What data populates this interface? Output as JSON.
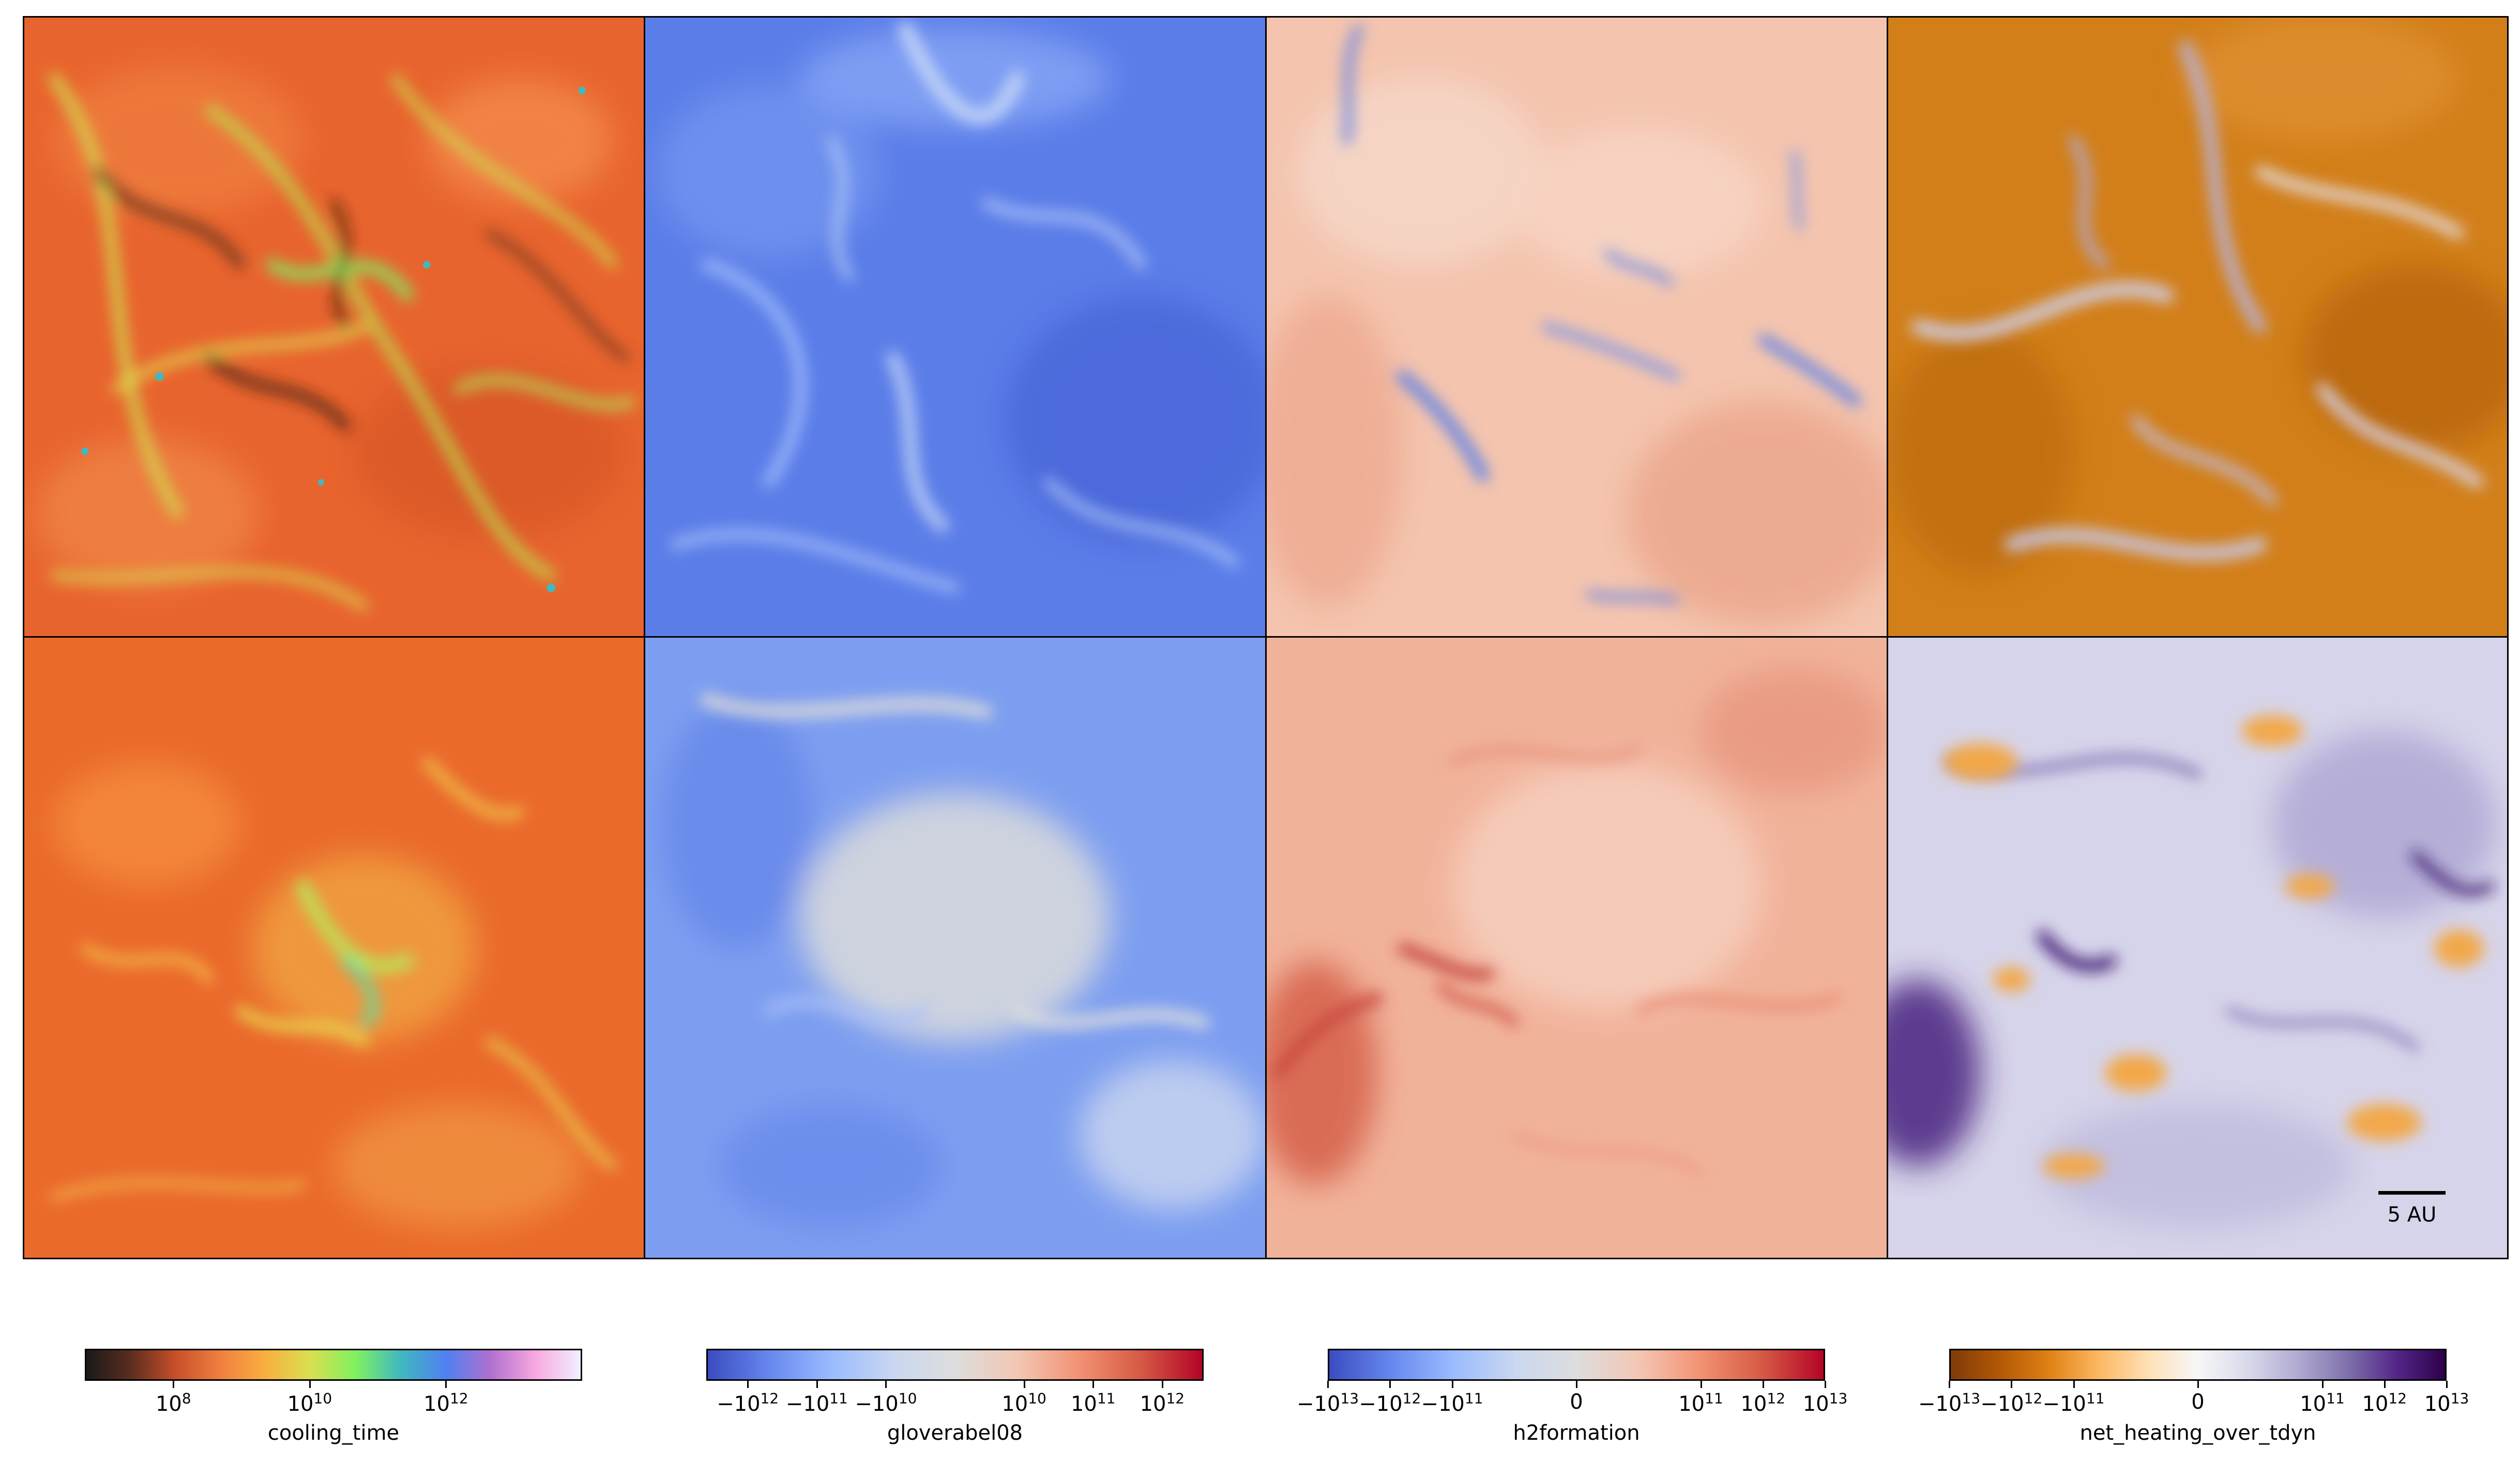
{
  "chart_data": {
    "type": "heatmap",
    "layout": "2 rows x 4 columns of field slices",
    "panels": [
      {
        "field": "cooling_time",
        "row": 1,
        "col": 1,
        "colormap": "orange field with green/yellow filaments, dark brown streaks"
      },
      {
        "field": "gloverabel08",
        "row": 1,
        "col": 2,
        "colormap": "mostly blue (negative) with light blue filaments"
      },
      {
        "field": "h2formation",
        "row": 1,
        "col": 3,
        "colormap": "light salmon (positive) with blue negative patches"
      },
      {
        "field": "net_heating_over_tdyn",
        "row": 1,
        "col": 4,
        "colormap": "orange (negative) with purple/lavender filaments"
      },
      {
        "field": "cooling_time",
        "row": 2,
        "col": 1,
        "colormap": "orange field with yellow/green center"
      },
      {
        "field": "gloverabel08",
        "row": 2,
        "col": 2,
        "colormap": "blue to grey-white"
      },
      {
        "field": "h2formation",
        "row": 2,
        "col": 3,
        "colormap": "salmon with dark red streaks"
      },
      {
        "field": "net_heating_over_tdyn",
        "row": 2,
        "col": 4,
        "colormap": "lavender/purple with orange patches"
      }
    ],
    "scale_bar": {
      "label": "5 AU"
    },
    "colorbars": [
      {
        "title": "cooling_time",
        "scale": "log",
        "ticks": [
          "10^8",
          "10^10",
          "10^12"
        ],
        "tick_values": [
          8,
          10,
          12
        ],
        "range": [
          6.7,
          14.0
        ],
        "colors": [
          "#1a1a1a",
          "#5c2d1e",
          "#c8502a",
          "#f08040",
          "#f8b040",
          "#d8e050",
          "#80f060",
          "#40b8c0",
          "#5080f0",
          "#b070d0",
          "#f8a8e0",
          "#f0f0ff"
        ]
      },
      {
        "title": "gloverabel08",
        "scale": "symlog",
        "ticks": [
          "−10^12",
          "−10^11",
          "−10^10",
          "10^10",
          "10^11",
          "10^12"
        ],
        "tick_values": [
          -12,
          -11,
          -10,
          10,
          11,
          12
        ],
        "range": [
          -12.6,
          12.6
        ],
        "colors": [
          "#3b4cc0",
          "#6688ee",
          "#9abbff",
          "#c9d7f0",
          "#dddddd",
          "#f2c7b4",
          "#f29274",
          "#d65a46",
          "#b40426"
        ]
      },
      {
        "title": "h2formation",
        "scale": "symlog",
        "ticks": [
          "−10^13",
          "−10^12",
          "−10^11",
          "0",
          "10^11",
          "10^12",
          "10^13"
        ],
        "tick_values": [
          -13,
          -12,
          -11,
          0,
          11,
          12,
          13
        ],
        "range": [
          -13,
          13
        ],
        "colors": [
          "#3b4cc0",
          "#6688ee",
          "#9abbff",
          "#c9d7f0",
          "#dddddd",
          "#f2c7b4",
          "#f29274",
          "#d65a46",
          "#b40426"
        ]
      },
      {
        "title": "net_heating_over_tdyn",
        "scale": "symlog",
        "ticks": [
          "−10^13",
          "−10^12",
          "−10^11",
          "0",
          "10^11",
          "10^12",
          "10^13"
        ],
        "tick_values": [
          -13,
          -12,
          -11,
          0,
          11,
          12,
          13
        ],
        "range": [
          -13,
          13
        ],
        "colors": [
          "#7f3b08",
          "#b35806",
          "#e08214",
          "#fdb863",
          "#fee0b6",
          "#f7f7f7",
          "#d8daeb",
          "#b2abd2",
          "#8073ac",
          "#542788",
          "#2d004b"
        ]
      }
    ]
  }
}
